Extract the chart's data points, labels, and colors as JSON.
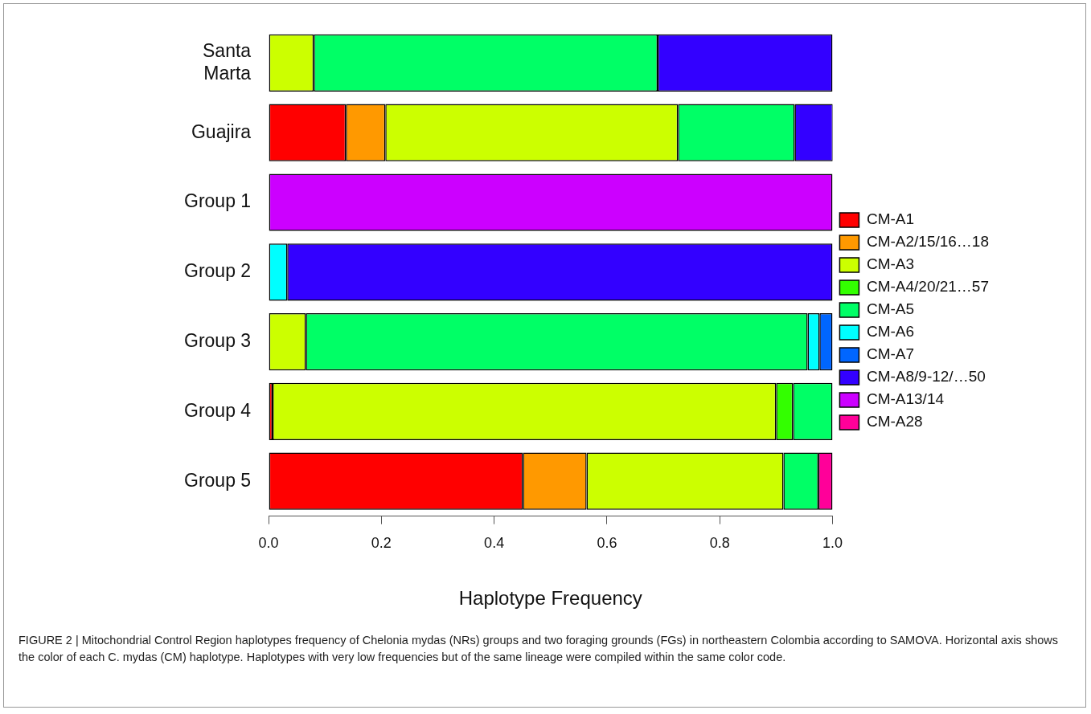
{
  "chart_data": {
    "type": "bar",
    "orientation": "horizontal",
    "stacked": true,
    "categories": [
      "Santa Marta",
      "Guajira",
      "Group 1",
      "Group 2",
      "Group 3",
      "Group 4",
      "Group 5"
    ],
    "series": [
      {
        "name": "CM-A1",
        "color": "#ff0000",
        "values": [
          null,
          0.137,
          null,
          null,
          null,
          0.007,
          0.451
        ]
      },
      {
        "name": "CM-A2/15/16…18",
        "color": "#ff9900",
        "values": [
          null,
          0.07,
          null,
          null,
          null,
          null,
          0.113
        ]
      },
      {
        "name": "CM-A3",
        "color": "#ccff00",
        "values": [
          0.08,
          0.519,
          null,
          null,
          0.066,
          0.893,
          0.349
        ]
      },
      {
        "name": "CM-A4/20/21…57",
        "color": "#33ff00",
        "values": [
          null,
          null,
          null,
          null,
          null,
          0.03,
          null
        ]
      },
      {
        "name": "CM-A5",
        "color": "#00ff66",
        "values": [
          0.61,
          0.207,
          null,
          null,
          0.89,
          0.07,
          0.062
        ]
      },
      {
        "name": "CM-A6",
        "color": "#00ffff",
        "values": [
          null,
          null,
          null,
          0.033,
          0.021,
          null,
          null
        ]
      },
      {
        "name": "CM-A7",
        "color": "#0066ff",
        "values": [
          null,
          null,
          null,
          null,
          0.023,
          null,
          null
        ]
      },
      {
        "name": "CM-A8/9-12/…50",
        "color": "#3300ff",
        "values": [
          0.31,
          0.068,
          null,
          0.967,
          null,
          null,
          null
        ]
      },
      {
        "name": "CM-A13/14",
        "color": "#cc00ff",
        "values": [
          null,
          null,
          1.0,
          null,
          null,
          null,
          null
        ]
      },
      {
        "name": "CM-A28",
        "color": "#ff0099",
        "values": [
          null,
          null,
          null,
          null,
          null,
          null,
          0.025
        ]
      }
    ],
    "xlim": [
      0,
      1
    ],
    "xticks": [
      {
        "value": 0,
        "label": "0.0"
      },
      {
        "value": 0.2,
        "label": "0.2"
      },
      {
        "value": 0.4,
        "label": "0.4"
      },
      {
        "value": 0.6,
        "label": "0.6"
      },
      {
        "value": 0.8,
        "label": "0.8"
      },
      {
        "value": 1,
        "label": "1.0"
      }
    ],
    "xlabel": "Haplotype Frequency",
    "legend": "right",
    "grid": false,
    "annotations": [
      "FIGURE 2 | Mitochondrial Control Region haplotypes frequency of Chelonia mydas (NRs) groups and two foraging grounds (FGs) in northeastern Colombia according to SAMOVA. Horizontal axis shows the color of each C. mydas (CM) haplotype. Haplotypes with very low frequencies but of the same lineage were compiled within the same color code."
    ]
  }
}
